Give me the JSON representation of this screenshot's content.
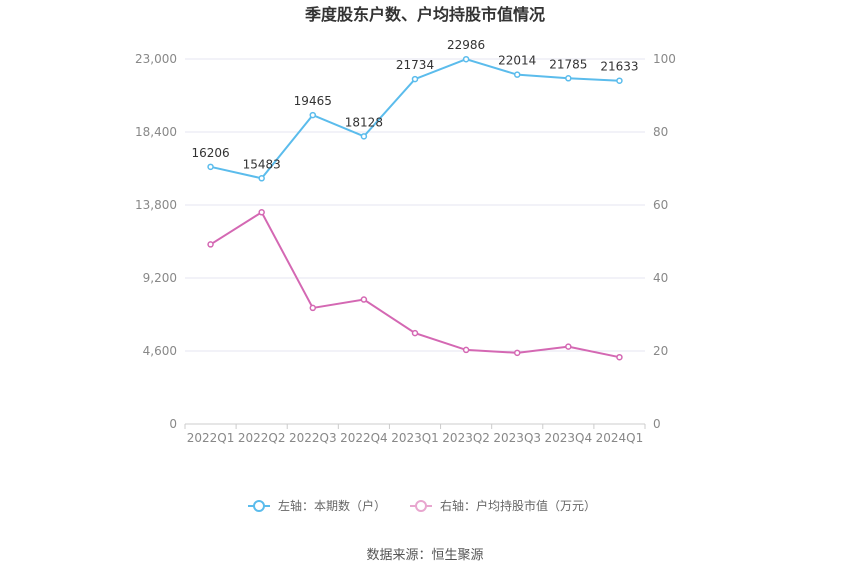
{
  "chart_data": {
    "type": "line",
    "title": "季度股东户数、户均持股市值情况",
    "categories": [
      "2022Q1",
      "2022Q2",
      "2022Q3",
      "2022Q4",
      "2023Q1",
      "2023Q2",
      "2023Q3",
      "2023Q4",
      "2024Q1"
    ],
    "left_axis": {
      "ticks": [
        "0",
        "4,600",
        "9,200",
        "13,800",
        "18,400",
        "23,000"
      ],
      "ylim": [
        0,
        23000
      ]
    },
    "right_axis": {
      "ticks": [
        "0",
        "20",
        "40",
        "60",
        "80",
        "100"
      ],
      "ylim": [
        0,
        100
      ]
    },
    "series": [
      {
        "name": "左轴：本期数（户）",
        "axis": "left",
        "color": "#5bbcec",
        "values": [
          16206,
          15483,
          19465,
          18128,
          21734,
          22986,
          22014,
          21785,
          21633
        ],
        "labels": [
          "16206",
          "15483",
          "19465",
          "18128",
          "21734",
          "22986",
          "22014",
          "21785",
          "21633"
        ]
      },
      {
        "name": "右轴：户均持股市值（万元）",
        "axis": "right",
        "color": "#d468b3",
        "legend_color": "#e8a6cf",
        "values": [
          49.2,
          58.0,
          31.8,
          34.1,
          24.9,
          20.3,
          19.5,
          21.2,
          18.3
        ]
      }
    ],
    "grid": true,
    "legend_position": "bottom"
  },
  "footer": {
    "source": "数据来源：恒生聚源"
  }
}
